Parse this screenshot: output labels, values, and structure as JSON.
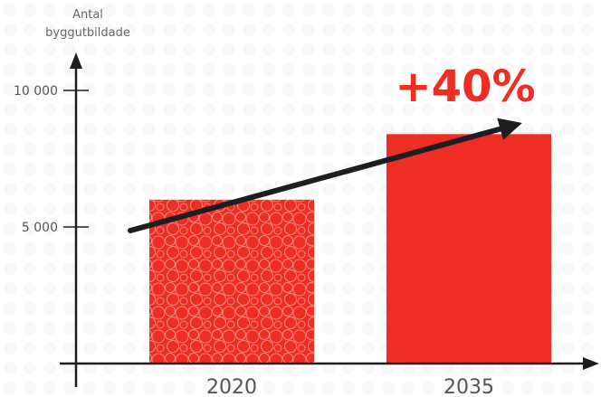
{
  "chart_data": {
    "type": "bar",
    "categories": [
      "2020",
      "2035"
    ],
    "values": [
      6000,
      8400
    ],
    "ylabel_lines": [
      "Antal",
      "byggutbildade"
    ],
    "yticks": [
      5000,
      10000
    ],
    "ytick_labels": [
      "5 000",
      "10 000"
    ],
    "ylim": [
      0,
      11500
    ],
    "grid": false,
    "annotation": {
      "text": "+40%",
      "type": "growth-arrow"
    },
    "colors": {
      "bar": "#ee2e24",
      "annotation": "#ee2e24",
      "arrow": "#1e1e1e",
      "axis": "#1e1e1e"
    },
    "bar_patterns": [
      "circles",
      "none"
    ]
  }
}
